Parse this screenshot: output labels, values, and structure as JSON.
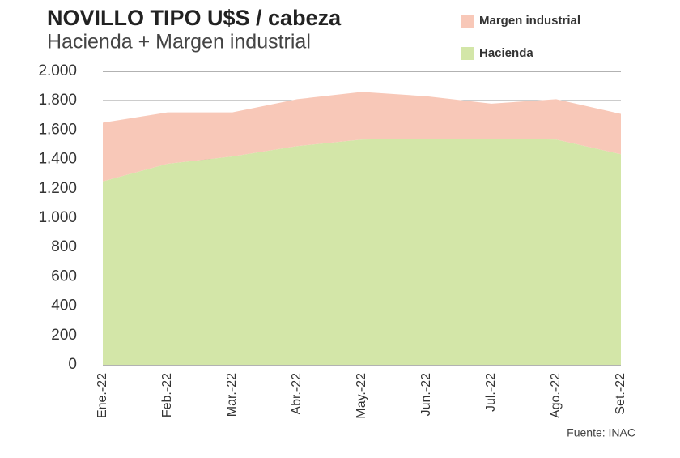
{
  "chart_data": {
    "type": "stacked_area",
    "title": "NOVILLO TIPO  U$S / cabeza",
    "subtitle": "Hacienda + Margen industrial",
    "source": "Fuente: INAC",
    "categories": [
      "Ene.-22",
      "Feb.-22",
      "Mar.-22",
      "Abr.-22",
      "May.-22",
      "Jun.-22",
      "Jul.-22",
      "Ago.-22",
      "Set.-22"
    ],
    "series": [
      {
        "name": "Hacienda",
        "color": "#d3e6a8",
        "values": [
          1250,
          1370,
          1420,
          1490,
          1535,
          1540,
          1540,
          1535,
          1435
        ]
      },
      {
        "name": "Margen industrial",
        "color": "#f8c8b8",
        "values": [
          400,
          350,
          300,
          320,
          325,
          290,
          240,
          275,
          275
        ]
      }
    ],
    "ylim": [
      0,
      2000
    ],
    "yticks": [
      0,
      200,
      400,
      600,
      800,
      {
        "value": 1000,
        "label": "1.000"
      },
      {
        "value": 1200,
        "label": "1.200"
      },
      {
        "value": 1400,
        "label": "1.400"
      },
      {
        "value": 1600,
        "label": "1.600"
      },
      {
        "value": 1800,
        "label": "1.800"
      },
      {
        "value": 2000,
        "label": "2.000"
      }
    ],
    "grid": true
  }
}
